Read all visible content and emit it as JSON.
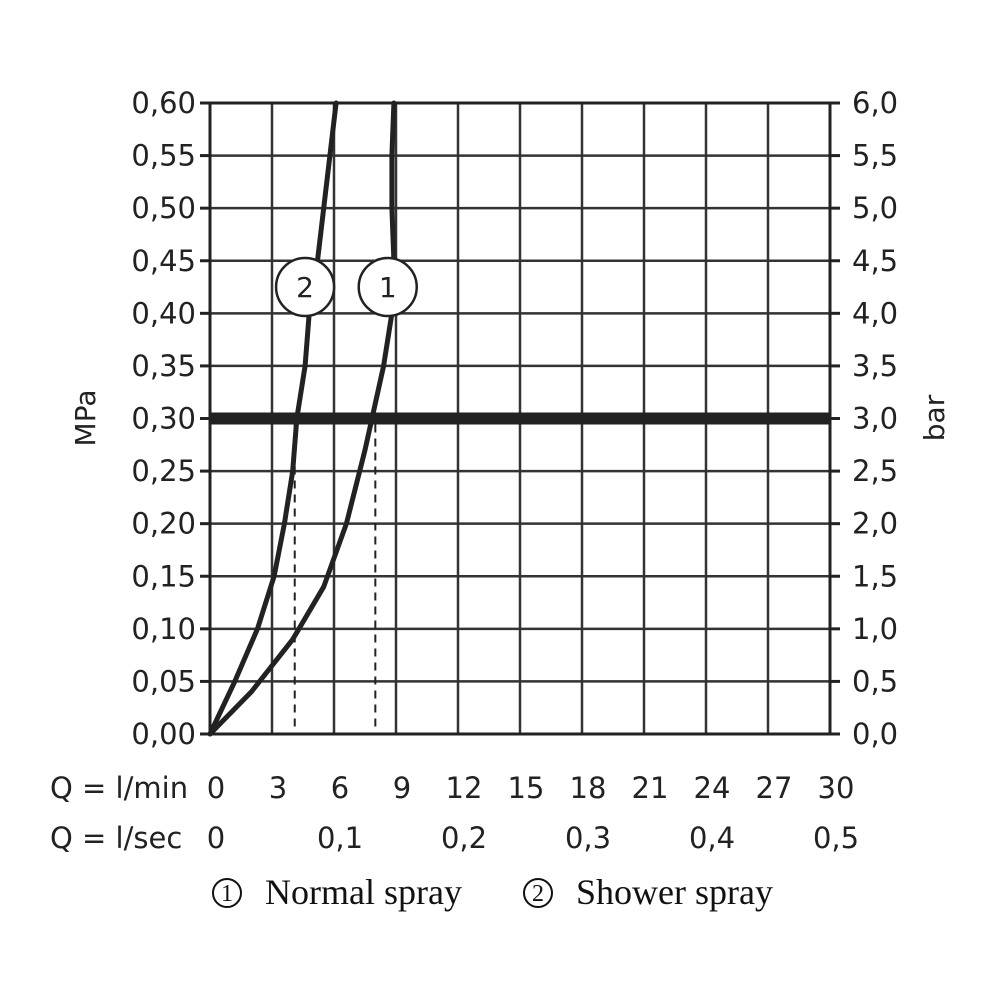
{
  "chart_data": {
    "type": "line",
    "ylabel_left": "MPa",
    "ylabel_right": "bar",
    "xlim": [
      0,
      30
    ],
    "ylim": [
      0,
      0.6
    ],
    "grid": true,
    "x_lmin_row": {
      "label": "Q = l/min",
      "ticks": [
        {
          "value": 0,
          "label": "0"
        },
        {
          "value": 3,
          "label": "3"
        },
        {
          "value": 6,
          "label": "6"
        },
        {
          "value": 9,
          "label": "9"
        },
        {
          "value": 12,
          "label": "12"
        },
        {
          "value": 15,
          "label": "15"
        },
        {
          "value": 18,
          "label": "18"
        },
        {
          "value": 21,
          "label": "21"
        },
        {
          "value": 24,
          "label": "24"
        },
        {
          "value": 27,
          "label": "27"
        },
        {
          "value": 30,
          "label": "30"
        }
      ]
    },
    "x_lsec_row": {
      "label": "Q = l/sec",
      "ticks": [
        {
          "value": 0,
          "label": "0"
        },
        {
          "value": 6,
          "label": "0,1"
        },
        {
          "value": 12,
          "label": "0,2"
        },
        {
          "value": 18,
          "label": "0,3"
        },
        {
          "value": 24,
          "label": "0,4"
        },
        {
          "value": 30,
          "label": "0,5"
        }
      ]
    },
    "y_left_ticks": [
      {
        "value": 0.0,
        "label": "0,00"
      },
      {
        "value": 0.05,
        "label": "0,05"
      },
      {
        "value": 0.1,
        "label": "0,10"
      },
      {
        "value": 0.15,
        "label": "0,15"
      },
      {
        "value": 0.2,
        "label": "0,20"
      },
      {
        "value": 0.25,
        "label": "0,25"
      },
      {
        "value": 0.3,
        "label": "0,30"
      },
      {
        "value": 0.35,
        "label": "0,35"
      },
      {
        "value": 0.4,
        "label": "0,40"
      },
      {
        "value": 0.45,
        "label": "0,45"
      },
      {
        "value": 0.5,
        "label": "0,50"
      },
      {
        "value": 0.55,
        "label": "0,55"
      },
      {
        "value": 0.6,
        "label": "0,60"
      }
    ],
    "y_right_ticks": [
      {
        "value": 0.0,
        "label": "0,0"
      },
      {
        "value": 0.05,
        "label": "0,5"
      },
      {
        "value": 0.1,
        "label": "1,0"
      },
      {
        "value": 0.15,
        "label": "1,5"
      },
      {
        "value": 0.2,
        "label": "2,0"
      },
      {
        "value": 0.25,
        "label": "2,5"
      },
      {
        "value": 0.3,
        "label": "3,0"
      },
      {
        "value": 0.35,
        "label": "3,5"
      },
      {
        "value": 0.4,
        "label": "4,0"
      },
      {
        "value": 0.45,
        "label": "4,5"
      },
      {
        "value": 0.5,
        "label": "5,0"
      },
      {
        "value": 0.55,
        "label": "5,5"
      },
      {
        "value": 0.6,
        "label": "6,0"
      }
    ],
    "reference_line": {
      "y": 0.3
    },
    "series": [
      {
        "marker": "1",
        "points": [
          [
            0,
            0
          ],
          [
            2,
            0.04
          ],
          [
            4,
            0.09
          ],
          [
            5.5,
            0.14
          ],
          [
            6.6,
            0.2
          ],
          [
            7.5,
            0.27
          ],
          [
            8.4,
            0.35
          ],
          [
            8.8,
            0.4
          ],
          [
            8.9,
            0.45
          ],
          [
            8.8,
            0.5
          ],
          [
            8.8,
            0.55
          ],
          [
            8.9,
            0.6
          ]
        ],
        "dashed_at": {
          "x": 8.0,
          "y": 0.3
        },
        "marker_at": {
          "x": 8.6,
          "y": 0.425
        }
      },
      {
        "marker": "2",
        "points": [
          [
            0,
            0
          ],
          [
            1.2,
            0.05
          ],
          [
            2.3,
            0.1
          ],
          [
            3.1,
            0.15
          ],
          [
            3.6,
            0.2
          ],
          [
            4.0,
            0.25
          ],
          [
            4.2,
            0.3
          ],
          [
            4.6,
            0.35
          ],
          [
            4.8,
            0.4
          ],
          [
            5.2,
            0.45
          ],
          [
            5.5,
            0.5
          ],
          [
            5.8,
            0.55
          ],
          [
            6.1,
            0.6
          ]
        ],
        "dashed_at": {
          "x": 4.1,
          "y": 0.3
        },
        "marker_at": {
          "x": 4.6,
          "y": 0.425
        }
      }
    ],
    "legend": [
      {
        "num": "1",
        "label": "Normal spray"
      },
      {
        "num": "2",
        "label": "Shower spray"
      }
    ]
  }
}
